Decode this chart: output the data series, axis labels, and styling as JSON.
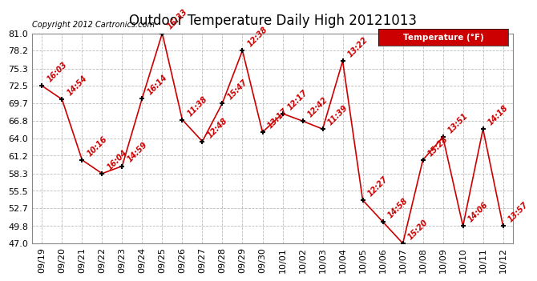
{
  "title": "Outdoor Temperature Daily High 20121013",
  "copyright": "Copyright 2012 Cartronics.com",
  "legend_label": "Temperature (°F)",
  "dates": [
    "09/19",
    "09/20",
    "09/21",
    "09/22",
    "09/23",
    "09/24",
    "09/25",
    "09/26",
    "09/27",
    "09/28",
    "09/29",
    "09/30",
    "10/01",
    "10/02",
    "10/03",
    "10/04",
    "10/05",
    "10/06",
    "10/07",
    "10/08",
    "10/09",
    "10/10",
    "10/11",
    "10/12"
  ],
  "temps": [
    72.5,
    70.3,
    60.5,
    58.3,
    59.5,
    70.5,
    81.0,
    67.0,
    63.5,
    69.7,
    78.2,
    65.0,
    68.0,
    66.8,
    65.5,
    76.5,
    54.0,
    50.5,
    47.0,
    60.5,
    64.2,
    49.8,
    65.5,
    49.8
  ],
  "time_labels": [
    "16:03",
    "14:54",
    "10:16",
    "16:04",
    "14:59",
    "16:14",
    "15:33",
    "11:38",
    "12:48",
    "15:47",
    "12:38",
    "13:17",
    "12:17",
    "12:42",
    "11:39",
    "13:22",
    "12:27",
    "14:58",
    "15:20",
    "15:28",
    "13:51",
    "14:06",
    "14:18",
    "13:57"
  ],
  "ylim": [
    47.0,
    81.0
  ],
  "yticks": [
    47.0,
    49.8,
    52.7,
    55.5,
    58.3,
    61.2,
    64.0,
    66.8,
    69.7,
    72.5,
    75.3,
    78.2,
    81.0
  ],
  "line_color": "#cc0000",
  "marker_color": "#000000",
  "label_color": "#cc0000",
  "bg_color": "#ffffff",
  "grid_color": "#bbbbbb",
  "title_fontsize": 12,
  "label_fontsize": 7,
  "copyright_fontsize": 7,
  "tick_fontsize": 8
}
